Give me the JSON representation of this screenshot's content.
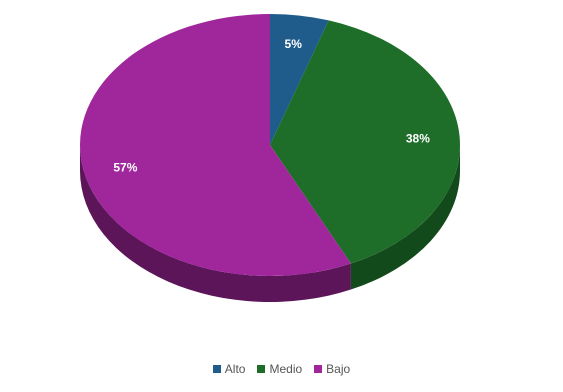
{
  "chart_data": {
    "type": "pie",
    "title": "",
    "legend_position": "bottom",
    "style": "3d",
    "slices": [
      {
        "label": "Alto",
        "value": 5,
        "display": "5%",
        "color": "#1f5c8b",
        "side_color": "#123a59"
      },
      {
        "label": "Medio",
        "value": 38,
        "display": "38%",
        "color": "#1e6e2a",
        "side_color": "#134a1b"
      },
      {
        "label": "Bajo",
        "value": 57,
        "display": "57%",
        "color": "#a0269b",
        "side_color": "#5c1559"
      }
    ]
  }
}
